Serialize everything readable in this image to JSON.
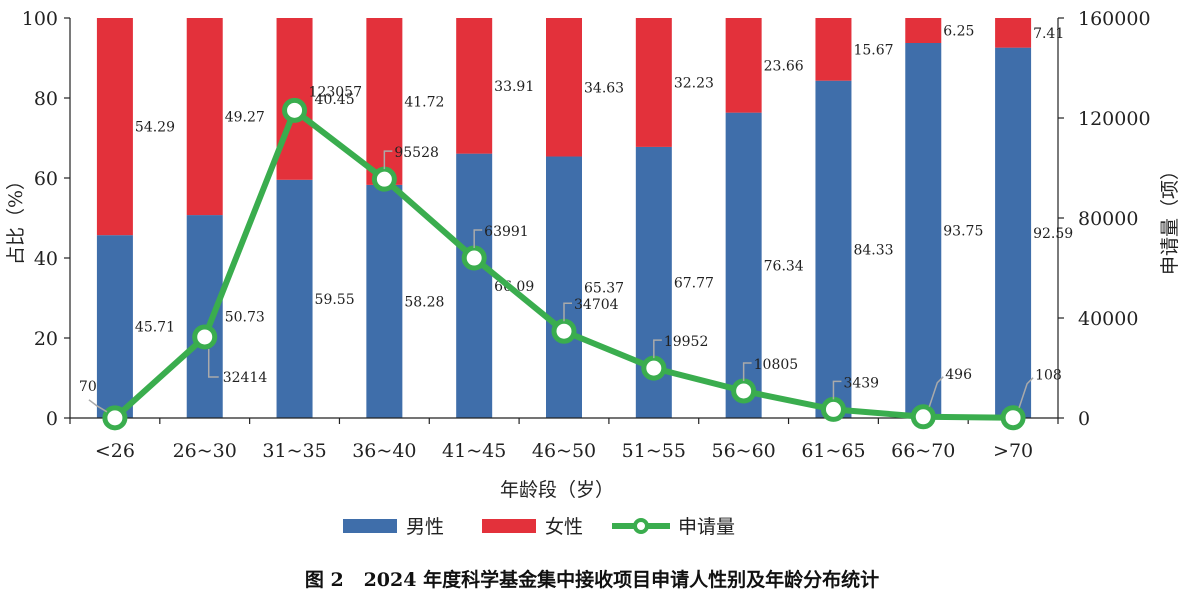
{
  "chart_data": {
    "type": "bar",
    "title": "图 2   2024 年度科学基金集中接收项目申请人性别及年龄分布统计",
    "xlabel": "年龄段（岁）",
    "ylabel": "占比（%）",
    "y2label": "申请量（项）",
    "ylim": [
      0,
      100
    ],
    "y2lim": [
      0,
      160000
    ],
    "yticks": [
      "0",
      "20",
      "40",
      "60",
      "80",
      "100"
    ],
    "y2ticks": [
      "0",
      "40000",
      "80000",
      "120000",
      "160000"
    ],
    "categories": [
      "<26",
      "26~30",
      "31~35",
      "36~40",
      "41~45",
      "46~50",
      "51~55",
      "56~60",
      "61~65",
      "66~70",
      ">70"
    ],
    "series": [
      {
        "name": "男性",
        "type": "bar",
        "color": "#3f6eaa",
        "values": [
          45.71,
          50.73,
          59.55,
          58.28,
          66.09,
          65.37,
          67.77,
          76.34,
          84.33,
          93.75,
          92.59
        ]
      },
      {
        "name": "女性",
        "type": "bar",
        "color": "#e3313b",
        "values": [
          54.29,
          49.27,
          40.45,
          41.72,
          33.91,
          34.63,
          32.23,
          23.66,
          15.67,
          6.25,
          7.41
        ]
      },
      {
        "name": "申请量",
        "type": "line",
        "axis": "right",
        "color": "#3aad4e",
        "values": [
          70,
          32414,
          123057,
          95528,
          63991,
          34704,
          19952,
          10805,
          3439,
          496,
          108
        ]
      }
    ],
    "legend_position": "bottom",
    "grid": false
  }
}
